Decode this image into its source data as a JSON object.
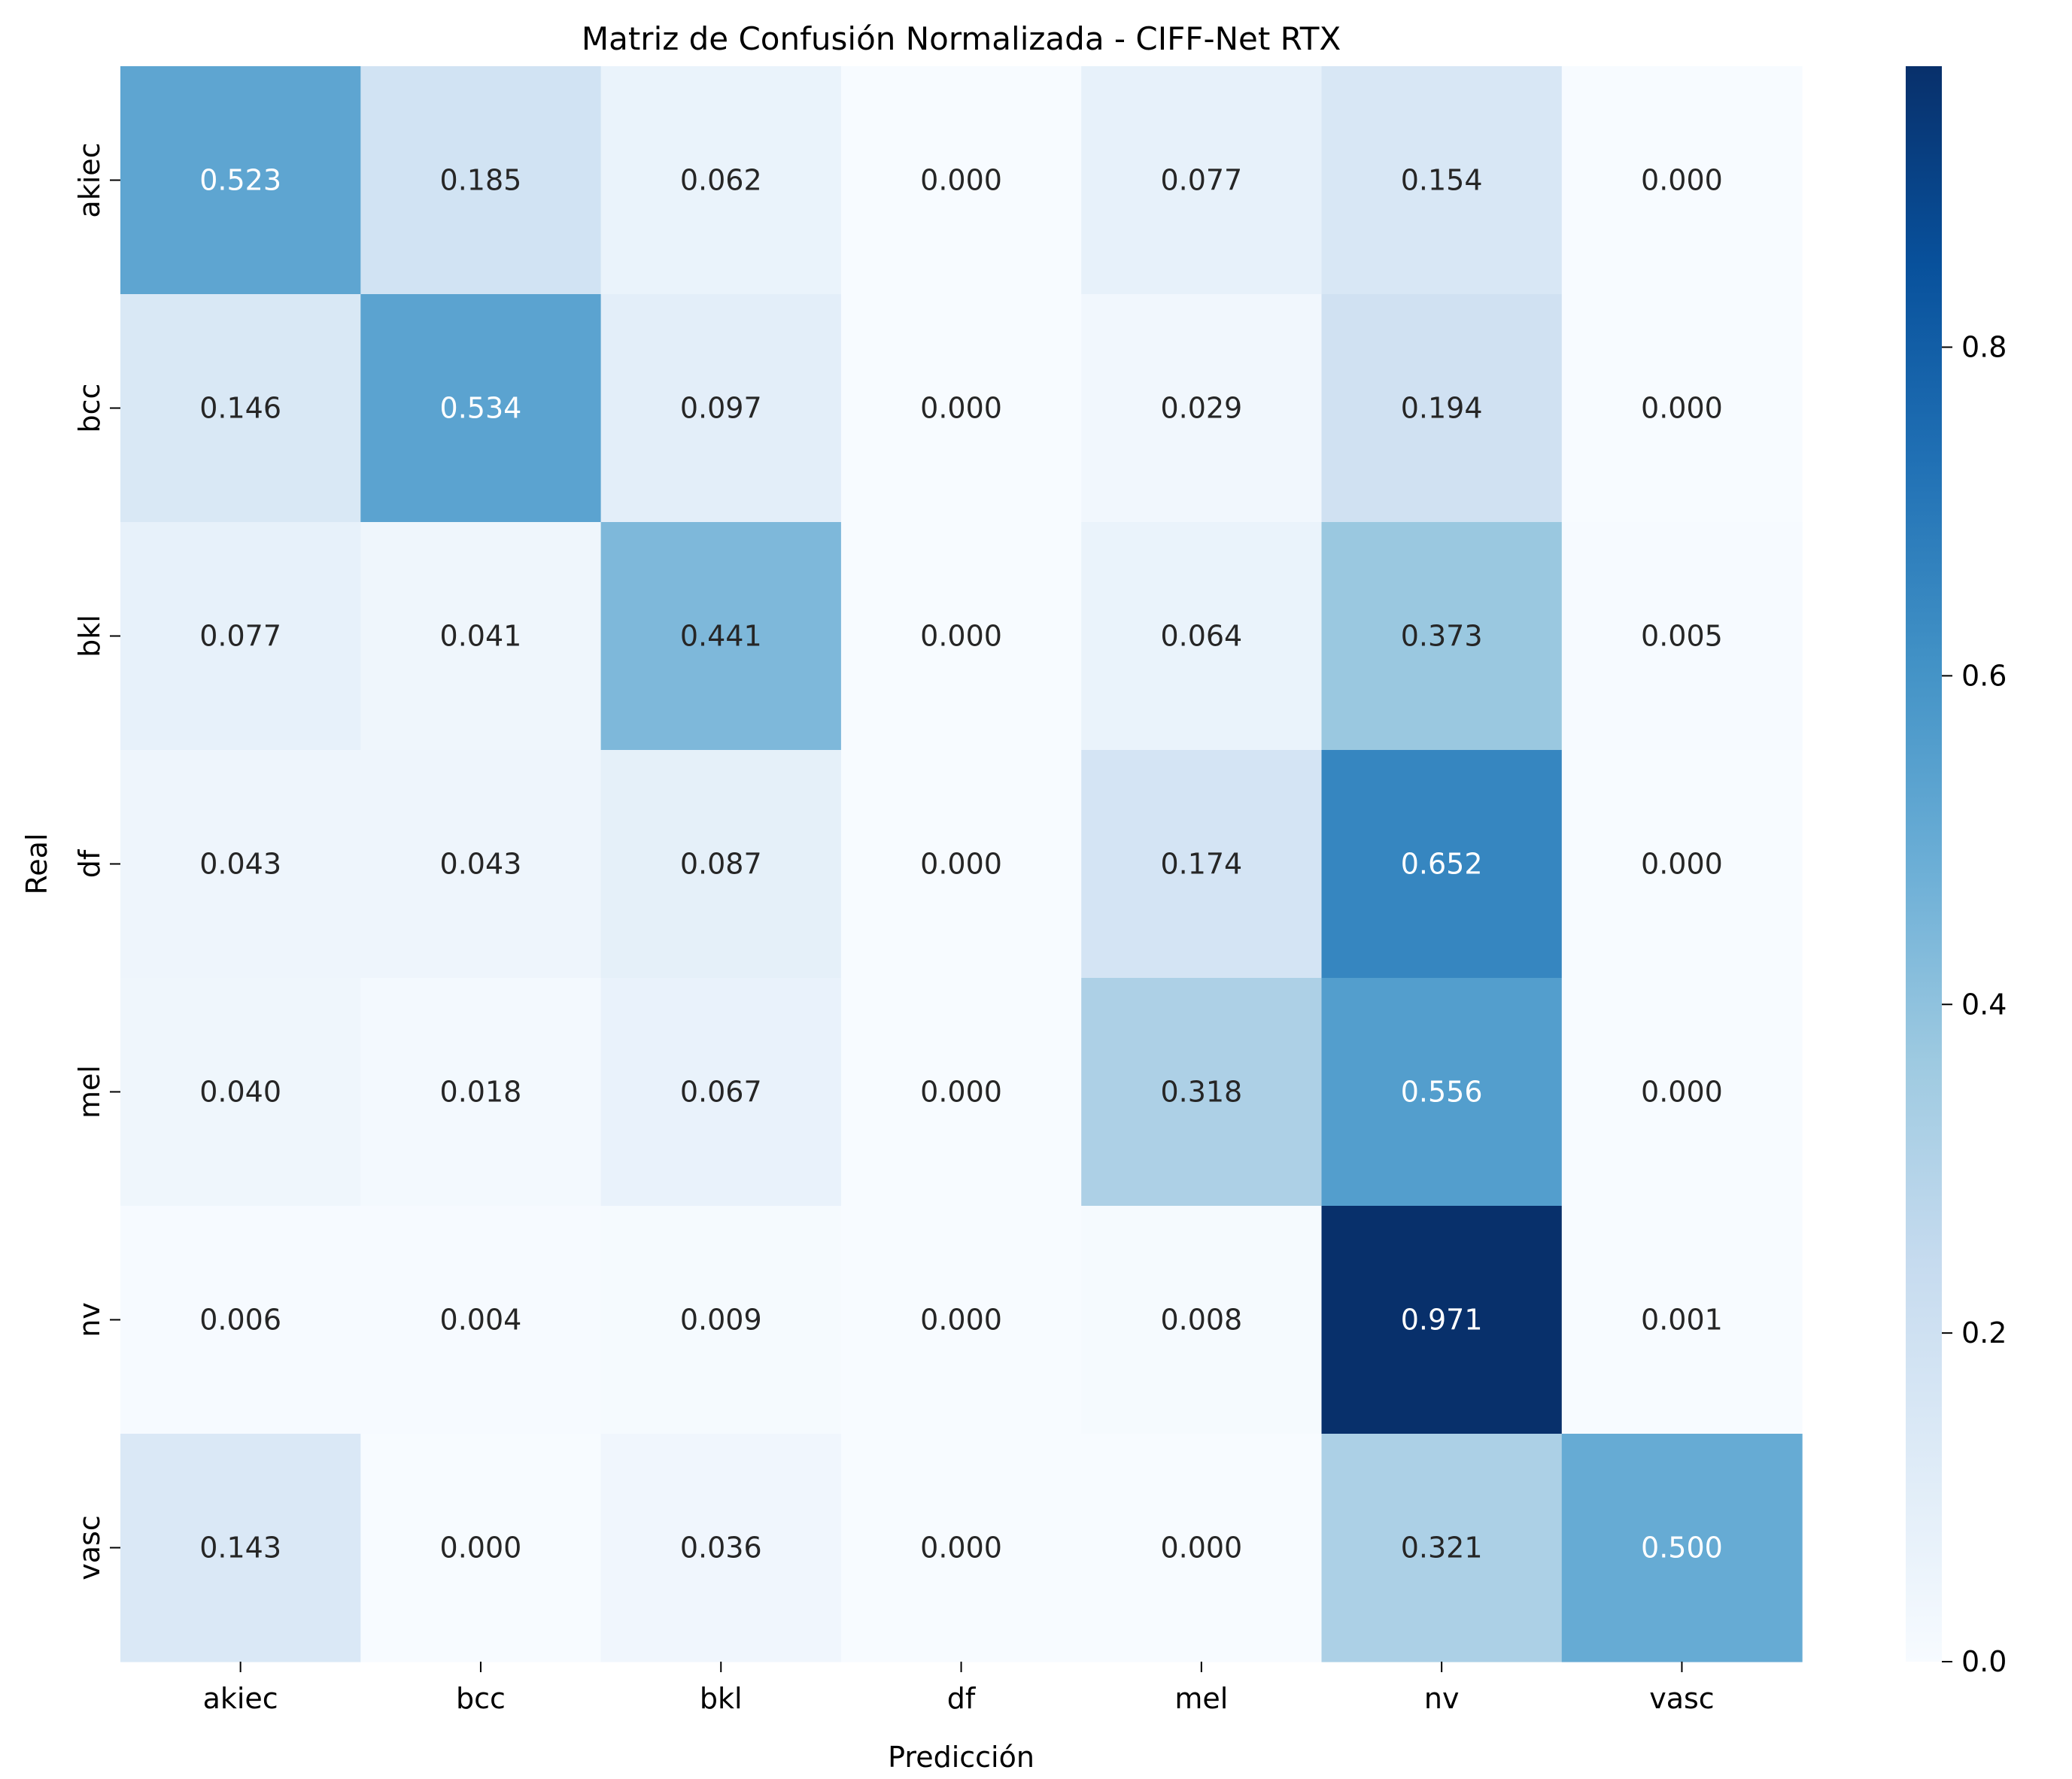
{
  "chart_data": {
    "type": "heatmap",
    "title": "Matriz de Confusión Normalizada - CIFF-Net RTX",
    "xlabel": "Predicción",
    "ylabel": "Real",
    "x_categories": [
      "akiec",
      "bcc",
      "bkl",
      "df",
      "mel",
      "nv",
      "vasc"
    ],
    "y_categories": [
      "akiec",
      "bcc",
      "bkl",
      "df",
      "mel",
      "nv",
      "vasc"
    ],
    "values": [
      [
        0.523,
        0.185,
        0.062,
        0.0,
        0.077,
        0.154,
        0.0
      ],
      [
        0.146,
        0.534,
        0.097,
        0.0,
        0.029,
        0.194,
        0.0
      ],
      [
        0.077,
        0.041,
        0.441,
        0.0,
        0.064,
        0.373,
        0.005
      ],
      [
        0.043,
        0.043,
        0.087,
        0.0,
        0.174,
        0.652,
        0.0
      ],
      [
        0.04,
        0.018,
        0.067,
        0.0,
        0.318,
        0.556,
        0.0
      ],
      [
        0.006,
        0.004,
        0.009,
        0.0,
        0.008,
        0.971,
        0.001
      ],
      [
        0.143,
        0.0,
        0.036,
        0.0,
        0.0,
        0.321,
        0.5
      ]
    ],
    "value_format": "0.000",
    "colorbar": {
      "min": 0.0,
      "max": 0.971,
      "ticks": [
        0.0,
        0.2,
        0.4,
        0.6,
        0.8
      ],
      "tick_labels": [
        "0.0",
        "0.2",
        "0.4",
        "0.6",
        "0.8"
      ]
    },
    "colormap": "Blues",
    "colormap_stops": [
      "#f7fbff",
      "#deebf7",
      "#c6dbef",
      "#9ecae1",
      "#6baed6",
      "#4292c6",
      "#2171b5",
      "#08519c",
      "#08306b"
    ],
    "text_color_dark": "#262626",
    "text_color_light": "#ffffff"
  }
}
